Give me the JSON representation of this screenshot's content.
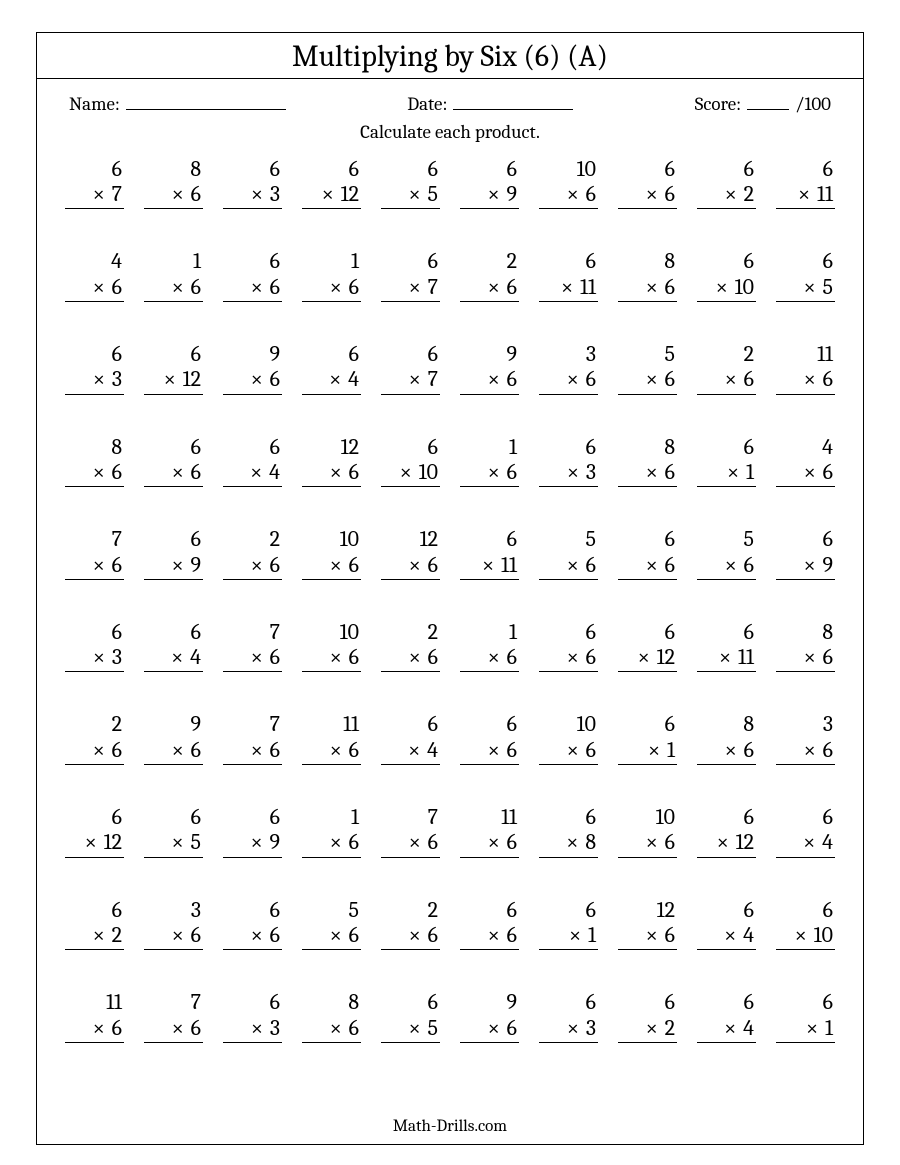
{
  "title": "Multiplying by Six (6) (A)",
  "labels": {
    "name": "Name:",
    "date": "Date:",
    "score": "Score:",
    "score_suffix": "/100",
    "instruction": "Calculate each product."
  },
  "footer": "Math-Drills.com",
  "style": {
    "columns": 10,
    "rows": 10,
    "font_family": "Cambria/Georgia serif",
    "title_fontsize": 30,
    "body_fontsize": 19,
    "problem_fontsize": 22,
    "border_color": "#000000",
    "background_color": "#ffffff",
    "text_color": "#000000",
    "mult_symbol": "×"
  },
  "problems": [
    [
      [
        6,
        7
      ],
      [
        8,
        6
      ],
      [
        6,
        3
      ],
      [
        6,
        12
      ],
      [
        6,
        5
      ],
      [
        6,
        9
      ],
      [
        10,
        6
      ],
      [
        6,
        6
      ],
      [
        6,
        2
      ],
      [
        6,
        11
      ]
    ],
    [
      [
        4,
        6
      ],
      [
        1,
        6
      ],
      [
        6,
        6
      ],
      [
        1,
        6
      ],
      [
        6,
        7
      ],
      [
        2,
        6
      ],
      [
        6,
        11
      ],
      [
        8,
        6
      ],
      [
        6,
        10
      ],
      [
        6,
        5
      ]
    ],
    [
      [
        6,
        3
      ],
      [
        6,
        12
      ],
      [
        9,
        6
      ],
      [
        6,
        4
      ],
      [
        6,
        7
      ],
      [
        9,
        6
      ],
      [
        3,
        6
      ],
      [
        5,
        6
      ],
      [
        2,
        6
      ],
      [
        11,
        6
      ]
    ],
    [
      [
        8,
        6
      ],
      [
        6,
        6
      ],
      [
        6,
        4
      ],
      [
        12,
        6
      ],
      [
        6,
        10
      ],
      [
        1,
        6
      ],
      [
        6,
        3
      ],
      [
        8,
        6
      ],
      [
        6,
        1
      ],
      [
        4,
        6
      ]
    ],
    [
      [
        7,
        6
      ],
      [
        6,
        9
      ],
      [
        2,
        6
      ],
      [
        10,
        6
      ],
      [
        12,
        6
      ],
      [
        6,
        11
      ],
      [
        5,
        6
      ],
      [
        6,
        6
      ],
      [
        5,
        6
      ],
      [
        6,
        9
      ]
    ],
    [
      [
        6,
        3
      ],
      [
        6,
        4
      ],
      [
        7,
        6
      ],
      [
        10,
        6
      ],
      [
        2,
        6
      ],
      [
        1,
        6
      ],
      [
        6,
        6
      ],
      [
        6,
        12
      ],
      [
        6,
        11
      ],
      [
        8,
        6
      ]
    ],
    [
      [
        2,
        6
      ],
      [
        9,
        6
      ],
      [
        7,
        6
      ],
      [
        11,
        6
      ],
      [
        6,
        4
      ],
      [
        6,
        6
      ],
      [
        10,
        6
      ],
      [
        6,
        1
      ],
      [
        8,
        6
      ],
      [
        3,
        6
      ]
    ],
    [
      [
        6,
        12
      ],
      [
        6,
        5
      ],
      [
        6,
        9
      ],
      [
        1,
        6
      ],
      [
        7,
        6
      ],
      [
        11,
        6
      ],
      [
        6,
        8
      ],
      [
        10,
        6
      ],
      [
        6,
        12
      ],
      [
        6,
        4
      ]
    ],
    [
      [
        6,
        2
      ],
      [
        3,
        6
      ],
      [
        6,
        6
      ],
      [
        5,
        6
      ],
      [
        2,
        6
      ],
      [
        6,
        6
      ],
      [
        6,
        1
      ],
      [
        12,
        6
      ],
      [
        6,
        4
      ],
      [
        6,
        10
      ]
    ],
    [
      [
        11,
        6
      ],
      [
        7,
        6
      ],
      [
        6,
        3
      ],
      [
        8,
        6
      ],
      [
        6,
        5
      ],
      [
        9,
        6
      ],
      [
        6,
        3
      ],
      [
        6,
        2
      ],
      [
        6,
        4
      ],
      [
        6,
        1
      ]
    ]
  ]
}
